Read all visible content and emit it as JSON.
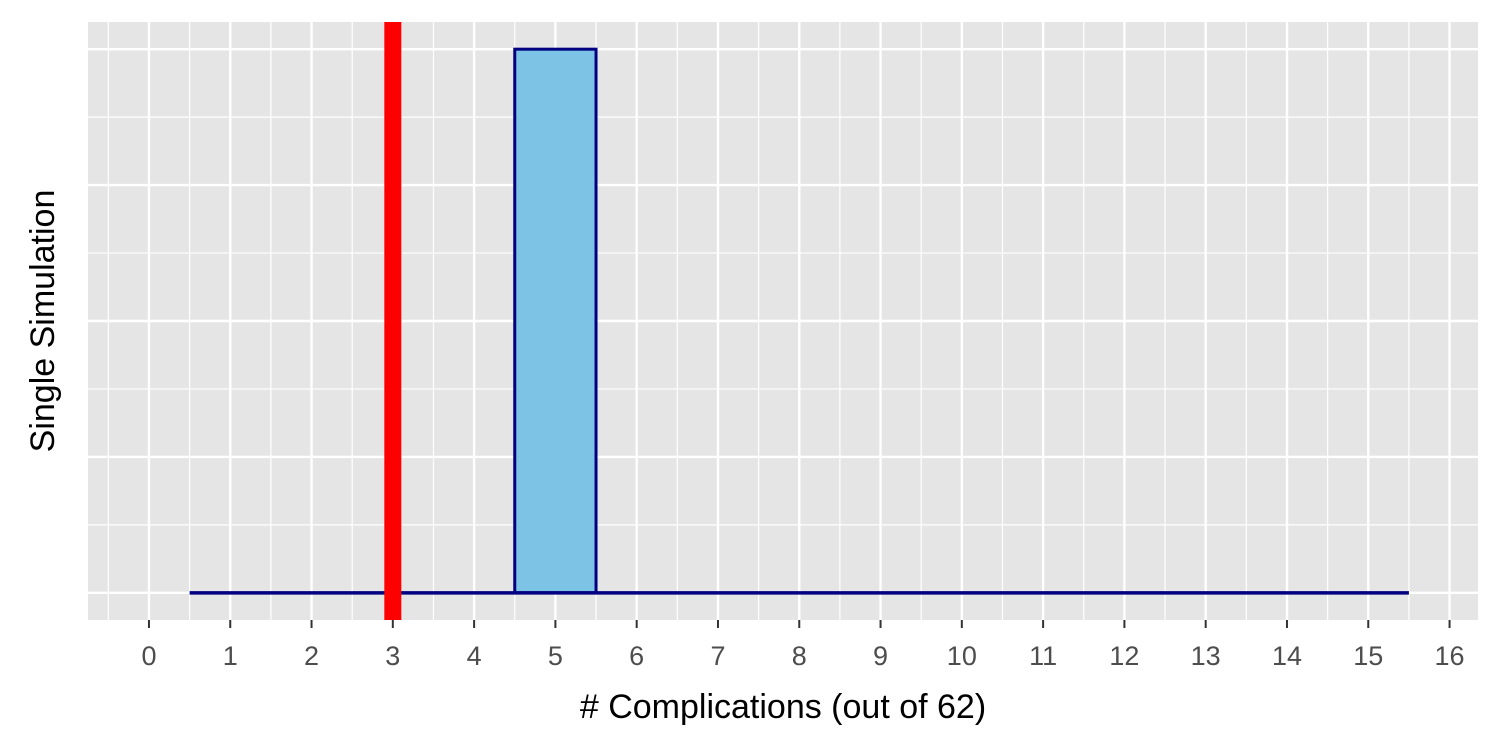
{
  "chart_data": {
    "type": "bar",
    "xlabel": "# Complications (out of 62)",
    "ylabel": "Single Simulation",
    "xlim": [
      -0.75,
      16.35
    ],
    "ylim": [
      -0.05,
      1.05
    ],
    "x_ticks": [
      0,
      1,
      2,
      3,
      4,
      5,
      6,
      7,
      8,
      9,
      10,
      11,
      12,
      13,
      14,
      15,
      16
    ],
    "x_tick_labels": [
      "0",
      "1",
      "2",
      "3",
      "4",
      "5",
      "6",
      "7",
      "8",
      "9",
      "10",
      "11",
      "12",
      "13",
      "14",
      "15",
      "16"
    ],
    "bin_width": 1,
    "bins": [
      1,
      2,
      3,
      4,
      5,
      6,
      7,
      8,
      9,
      10,
      11,
      12,
      13,
      14,
      15
    ],
    "counts": [
      0,
      0,
      0,
      0,
      1,
      0,
      0,
      0,
      0,
      0,
      0,
      0,
      0,
      0,
      0
    ],
    "observed_value": 3,
    "grid": true,
    "y_tick_labels_shown": false,
    "colors": {
      "panel_background": "#e5e5e5",
      "grid": "#ffffff",
      "bar_fill": "#7dc3e6",
      "bar_outline": "#000080",
      "observed_line": "#ff0000"
    }
  }
}
